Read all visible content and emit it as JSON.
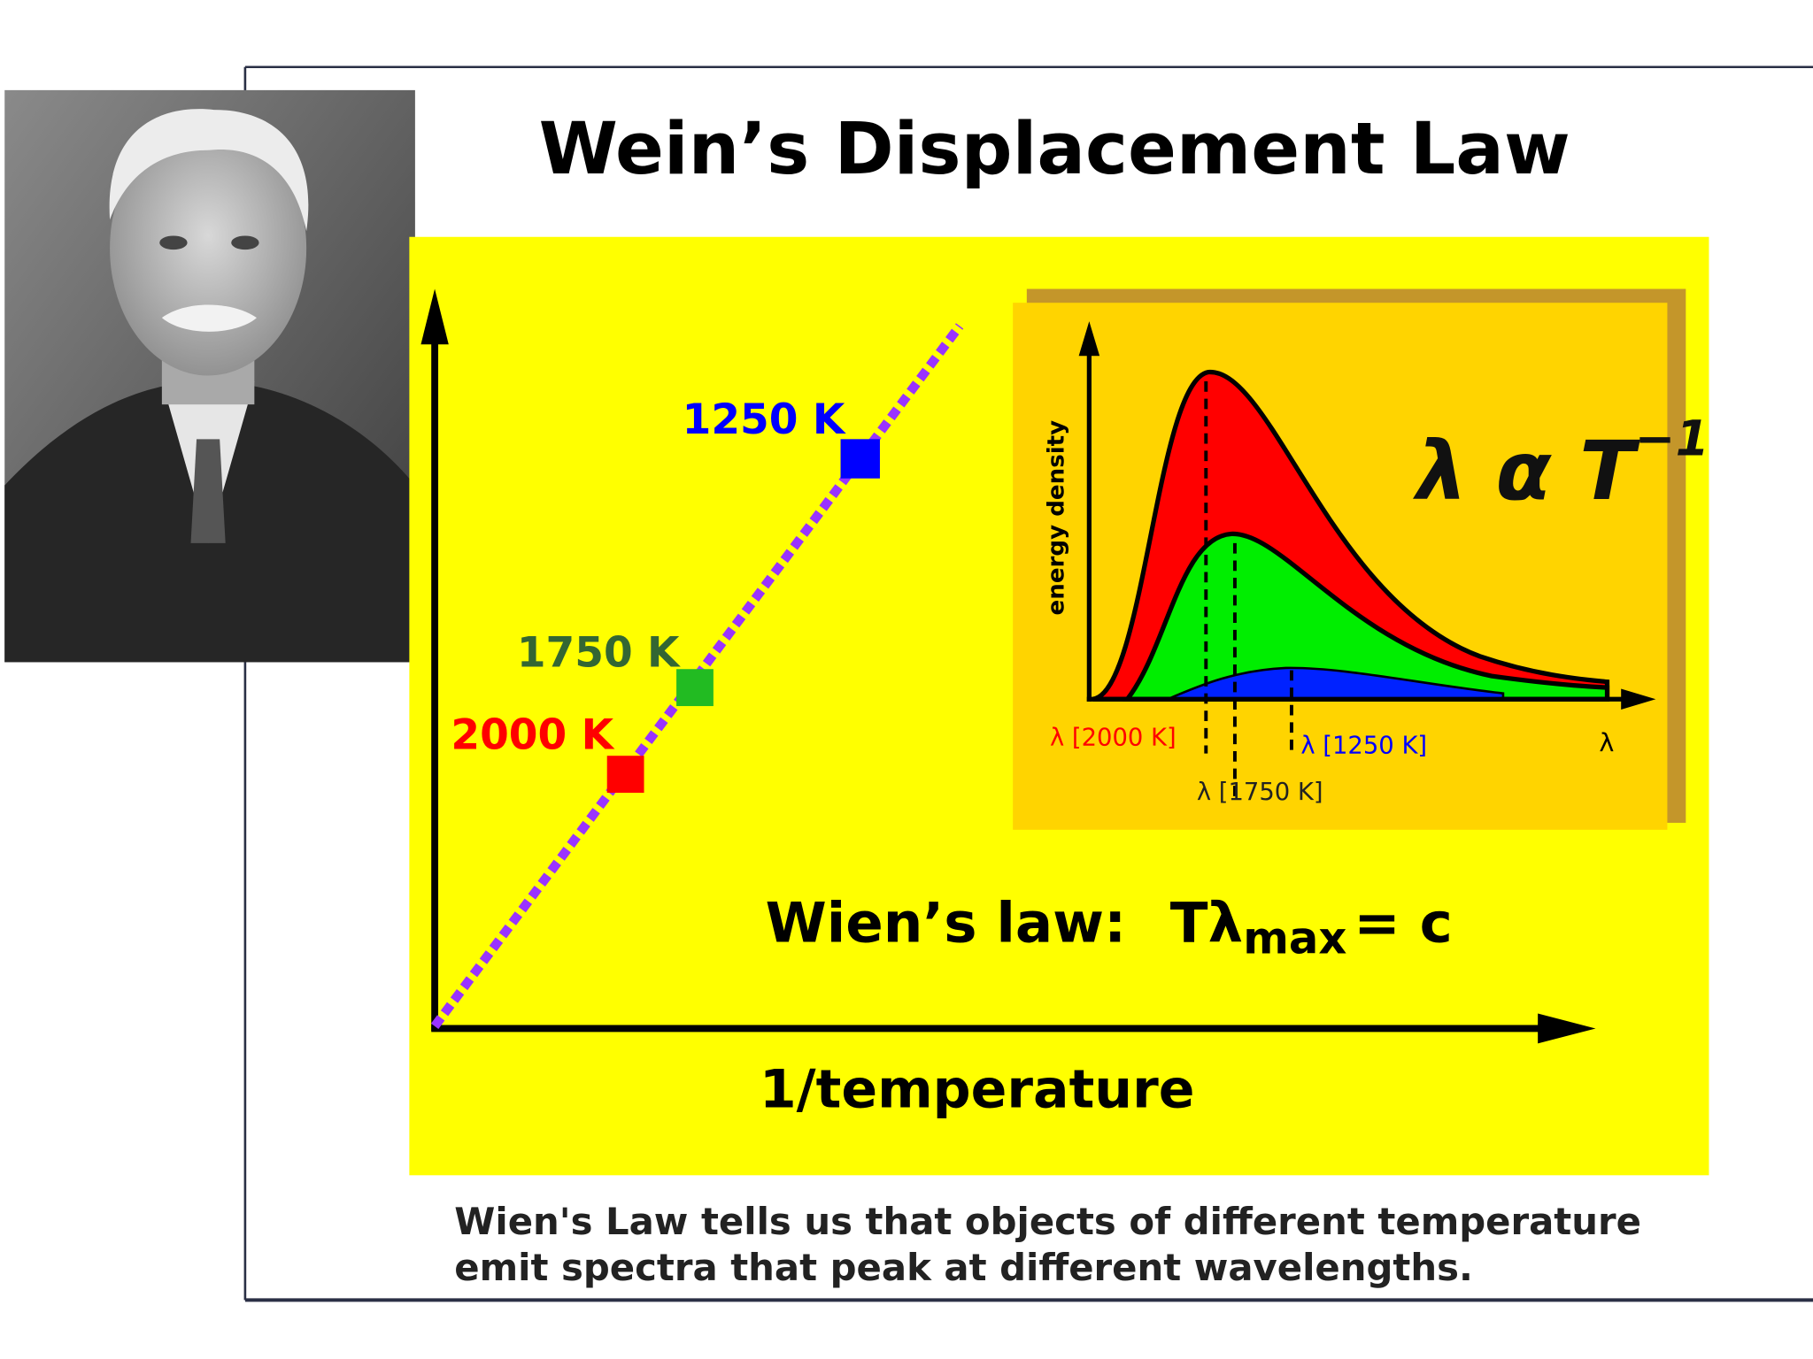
{
  "header": {
    "title": "Wein’s Displacement Law"
  },
  "diagram": {
    "x_axis_label": "1/temperature",
    "points": [
      {
        "label": "2000 K"
      },
      {
        "label": "1750 K"
      },
      {
        "label": "1250 K"
      }
    ],
    "law": {
      "label": "Wien’s law:",
      "formula": "Tλ",
      "subscript": "max",
      "rhs": "= c"
    }
  },
  "inset": {
    "y_axis_label": "energy density",
    "peak_labels": [
      "λ [2000 K]",
      "λ [1750 K]",
      "λ [1250 K]"
    ],
    "x_axis_label": "λ",
    "relation": "λ α T",
    "exponent": "−1"
  },
  "caption": [
    "Wien's Law tells us that objects of different temperature",
    "emit spectra that peak at different wavelengths."
  ]
}
